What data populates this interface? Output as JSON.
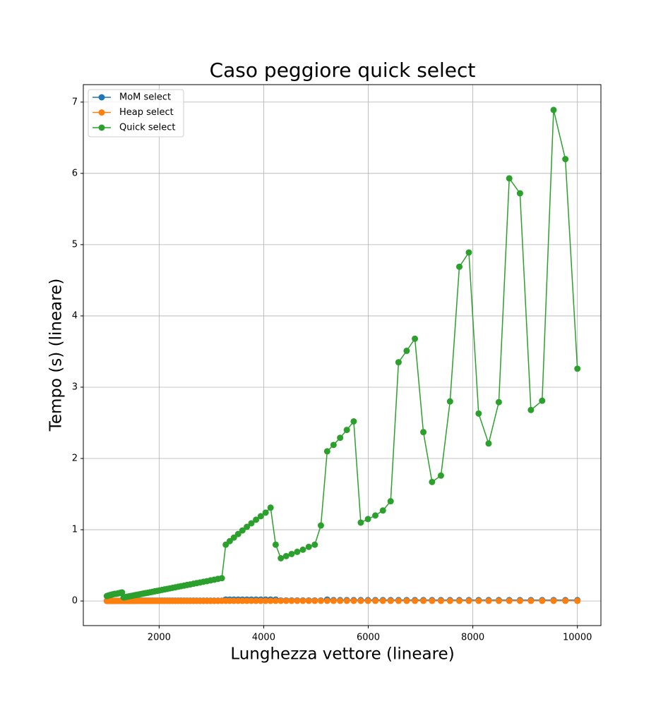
{
  "chart_data": {
    "type": "line",
    "title": "Caso peggiore quick select",
    "x_label": "Lunghezza vettore (lineare)",
    "y_label": "Tempo (s) (lineare)",
    "x": [
      1000,
      1023,
      1047,
      1072,
      1097,
      1123,
      1149,
      1176,
      1204,
      1232,
      1261,
      1291,
      1321,
      1353,
      1384,
      1417,
      1450,
      1484,
      1519,
      1555,
      1592,
      1629,
      1668,
      1707,
      1747,
      1788,
      1830,
      1873,
      1917,
      1963,
      2009,
      2056,
      2104,
      2154,
      2205,
      2257,
      2310,
      2364,
      2420,
      2477,
      2535,
      2595,
      2656,
      2718,
      2782,
      2848,
      2915,
      2983,
      3053,
      3125,
      3199,
      3274,
      3351,
      3430,
      3511,
      3593,
      3678,
      3764,
      3853,
      3944,
      4037,
      4132,
      4229,
      4328,
      4430,
      4534,
      4641,
      4750,
      4862,
      4977,
      5094,
      5214,
      5336,
      5462,
      5590,
      5722,
      5857,
      5994,
      6135,
      6280,
      6428,
      6579,
      6734,
      6892,
      7054,
      7220,
      7390,
      7564,
      7742,
      7924,
      8111,
      8302,
      8497,
      8697,
      8902,
      9111,
      9326,
      9545,
      9770,
      10000
    ],
    "series": [
      {
        "name": "MoM select",
        "color": "#1f77b4",
        "values": [
          0.002,
          0.002,
          0.002,
          0.002,
          0.002,
          0.002,
          0.002,
          0.002,
          0.002,
          0.002,
          0.002,
          0.002,
          0.002,
          0.002,
          0.002,
          0.002,
          0.002,
          0.002,
          0.002,
          0.002,
          0.005,
          0.005,
          0.005,
          0.005,
          0.005,
          0.005,
          0.005,
          0.005,
          0.005,
          0.005,
          0.005,
          0.005,
          0.005,
          0.005,
          0.005,
          0.005,
          0.005,
          0.005,
          0.005,
          0.005,
          0.005,
          0.005,
          0.005,
          0.005,
          0.005,
          0.005,
          0.005,
          0.005,
          0.005,
          0.005,
          0.005,
          0.02,
          0.02,
          0.02,
          0.02,
          0.02,
          0.02,
          0.02,
          0.02,
          0.02,
          0.02,
          0.02,
          0.02,
          0.008,
          0.008,
          0.008,
          0.008,
          0.008,
          0.008,
          0.008,
          0.008,
          0.02,
          0.012,
          0.012,
          0.012,
          0.012,
          0.012,
          0.012,
          0.012,
          0.012,
          0.012,
          0.012,
          0.012,
          0.012,
          0.012,
          0.012,
          0.012,
          0.012,
          0.012,
          0.012,
          0.012,
          0.012,
          0.012,
          0.012,
          0.012,
          0.012,
          0.012,
          0.012,
          0.012,
          0.012
        ]
      },
      {
        "name": "Heap select",
        "color": "#ff7f0e",
        "values": [
          0.001,
          0.001,
          0.001,
          0.001,
          0.001,
          0.001,
          0.001,
          0.001,
          0.001,
          0.001,
          0.001,
          0.001,
          0.001,
          0.001,
          0.001,
          0.001,
          0.001,
          0.001,
          0.001,
          0.001,
          0.001,
          0.001,
          0.001,
          0.001,
          0.001,
          0.001,
          0.001,
          0.001,
          0.001,
          0.001,
          0.001,
          0.001,
          0.001,
          0.001,
          0.001,
          0.001,
          0.001,
          0.001,
          0.001,
          0.001,
          0.001,
          0.001,
          0.001,
          0.001,
          0.001,
          0.001,
          0.001,
          0.001,
          0.001,
          0.001,
          0.002,
          0.002,
          0.002,
          0.002,
          0.002,
          0.002,
          0.002,
          0.002,
          0.002,
          0.002,
          0.002,
          0.002,
          0.002,
          0.002,
          0.002,
          0.002,
          0.002,
          0.002,
          0.002,
          0.002,
          0.002,
          0.002,
          0.002,
          0.002,
          0.002,
          0.002,
          0.002,
          0.002,
          0.002,
          0.002,
          0.002,
          0.002,
          0.002,
          0.002,
          0.002,
          0.002,
          0.002,
          0.002,
          0.002,
          0.002,
          0.002,
          0.002,
          0.002,
          0.002,
          0.002,
          0.002,
          0.002,
          0.002,
          0.002,
          0.002
        ]
      },
      {
        "name": "Quick select",
        "color": "#2ca02c",
        "values": [
          0.07,
          0.075,
          0.08,
          0.085,
          0.09,
          0.095,
          0.1,
          0.1,
          0.105,
          0.11,
          0.115,
          0.12,
          0.05,
          0.054,
          0.059,
          0.064,
          0.069,
          0.073,
          0.079,
          0.084,
          0.089,
          0.094,
          0.1,
          0.106,
          0.111,
          0.117,
          0.123,
          0.129,
          0.136,
          0.142,
          0.149,
          0.156,
          0.163,
          0.17,
          0.177,
          0.185,
          0.192,
          0.2,
          0.208,
          0.216,
          0.225,
          0.233,
          0.242,
          0.251,
          0.26,
          0.27,
          0.279,
          0.289,
          0.299,
          0.31,
          0.32,
          0.79,
          0.84,
          0.89,
          0.94,
          0.99,
          1.04,
          1.09,
          1.14,
          1.19,
          1.24,
          1.31,
          0.79,
          0.6,
          0.63,
          0.66,
          0.69,
          0.72,
          0.76,
          0.79,
          1.06,
          2.1,
          2.19,
          2.29,
          2.4,
          2.52,
          1.1,
          1.15,
          1.2,
          1.27,
          1.4,
          3.35,
          3.51,
          3.68,
          2.37,
          1.67,
          1.76,
          2.8,
          4.69,
          4.89,
          2.63,
          2.21,
          2.79,
          5.93,
          5.72,
          2.68,
          2.81,
          6.89,
          6.2,
          3.26
        ]
      }
    ],
    "xlim": [
      550,
      10450
    ],
    "xticks": [
      2000,
      4000,
      6000,
      8000,
      10000
    ],
    "ylim": [
      -0.345,
      7.245
    ],
    "yticks": [
      0,
      1,
      2,
      3,
      4,
      5,
      6,
      7
    ],
    "grid": true,
    "legend": "upper-left"
  }
}
